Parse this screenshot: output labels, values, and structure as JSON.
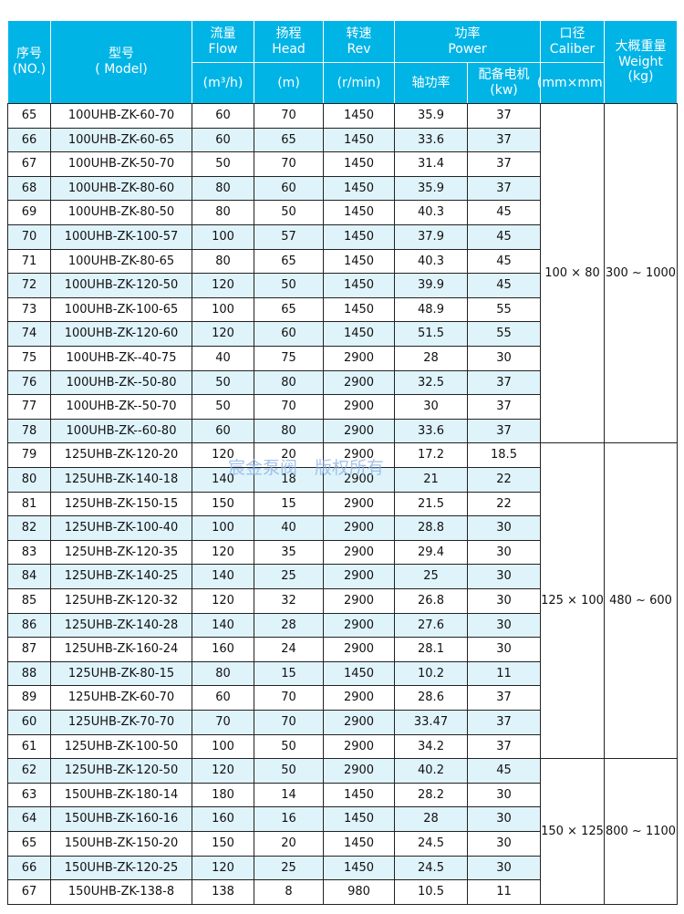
{
  "header": {
    "no": {
      "zh": "序号",
      "en": "(NO.)"
    },
    "model": {
      "zh": "型号",
      "en": "( Model)"
    },
    "flow": {
      "zh": "流量",
      "en": "Flow",
      "unit": "(m³/h)"
    },
    "head": {
      "zh": "扬程",
      "en": "Head",
      "unit": "(m)"
    },
    "rev": {
      "zh": "转速",
      "en": "Rev",
      "unit": "(r/min)"
    },
    "power": {
      "zh": "功率",
      "en": "Power",
      "shaft": "轴功率",
      "motor": {
        "zh": "配备电机",
        "unit": "(kw)"
      }
    },
    "caliber": {
      "zh": "口径",
      "en": "Caliber",
      "unit": "(mm×mm)"
    },
    "weight": {
      "zh": "大概重量",
      "en": "Weight",
      "unit": "(kg)"
    }
  },
  "groups": [
    {
      "caliber": "100 × 80",
      "weight": "300 ~ 1000",
      "rows": [
        [
          65,
          "100UHB-ZK-60-70",
          60,
          70,
          1450,
          35.9,
          37
        ],
        [
          66,
          "100UHB-ZK-60-65",
          60,
          65,
          1450,
          33.6,
          37
        ],
        [
          67,
          "100UHB-ZK-50-70",
          50,
          70,
          1450,
          31.4,
          37
        ],
        [
          68,
          "100UHB-ZK-80-60",
          80,
          60,
          1450,
          35.9,
          37
        ],
        [
          69,
          "100UHB-ZK-80-50",
          80,
          50,
          1450,
          40.3,
          45
        ],
        [
          70,
          "100UHB-ZK-100-57",
          100,
          57,
          1450,
          37.9,
          45
        ],
        [
          71,
          "100UHB-ZK-80-65",
          80,
          65,
          1450,
          40.3,
          45
        ],
        [
          72,
          "100UHB-ZK-120-50",
          120,
          50,
          1450,
          39.9,
          45
        ],
        [
          73,
          "100UHB-ZK-100-65",
          100,
          65,
          1450,
          48.9,
          55
        ],
        [
          74,
          "100UHB-ZK-120-60",
          120,
          60,
          1450,
          51.5,
          55
        ],
        [
          75,
          "100UHB-ZK--40-75",
          40,
          75,
          2900,
          28,
          30
        ],
        [
          76,
          "100UHB-ZK--50-80",
          50,
          80,
          2900,
          32.5,
          37
        ],
        [
          77,
          "100UHB-ZK--50-70",
          50,
          70,
          2900,
          30,
          37
        ],
        [
          78,
          "100UHB-ZK--60-80",
          60,
          80,
          2900,
          33.6,
          37
        ]
      ]
    },
    {
      "caliber": "125 × 100",
      "weight": "480 ~ 600",
      "rows": [
        [
          79,
          "125UHB-ZK-120-20",
          120,
          20,
          2900,
          17.2,
          18.5
        ],
        [
          80,
          "125UHB-ZK-140-18",
          140,
          18,
          2900,
          21,
          22
        ],
        [
          81,
          "125UHB-ZK-150-15",
          150,
          15,
          2900,
          21.5,
          22
        ],
        [
          82,
          "125UHB-ZK-100-40",
          100,
          40,
          2900,
          28.8,
          30
        ],
        [
          83,
          "125UHB-ZK-120-35",
          120,
          35,
          2900,
          29.4,
          30
        ],
        [
          84,
          "125UHB-ZK-140-25",
          140,
          25,
          2900,
          25,
          30
        ],
        [
          85,
          "125UHB-ZK-120-32",
          120,
          32,
          2900,
          26.8,
          30
        ],
        [
          86,
          "125UHB-ZK-140-28",
          140,
          28,
          2900,
          27.6,
          30
        ],
        [
          87,
          "125UHB-ZK-160-24",
          160,
          24,
          2900,
          28.1,
          30
        ],
        [
          88,
          "125UHB-ZK-80-15",
          80,
          15,
          1450,
          10.2,
          11
        ],
        [
          89,
          "125UHB-ZK-60-70",
          60,
          70,
          2900,
          28.6,
          37
        ],
        [
          60,
          "125UHB-ZK-70-70",
          70,
          70,
          2900,
          33.47,
          37
        ],
        [
          61,
          "125UHB-ZK-100-50",
          100,
          50,
          2900,
          34.2,
          37
        ]
      ]
    },
    {
      "caliber": "150 × 125",
      "weight": "800 ~ 1100",
      "rows": [
        [
          62,
          "125UHB-ZK-120-50",
          120,
          50,
          2900,
          40.2,
          45
        ],
        [
          63,
          "150UHB-ZK-180-14",
          180,
          14,
          1450,
          28.2,
          30
        ],
        [
          64,
          "150UHB-ZK-160-16",
          160,
          16,
          1450,
          28,
          30
        ],
        [
          65,
          "150UHB-ZK-150-20",
          150,
          20,
          1450,
          24.5,
          30
        ],
        [
          66,
          "150UHB-ZK-120-25",
          120,
          25,
          1450,
          24.5,
          30
        ],
        [
          67,
          "150UHB-ZK-138-8",
          138,
          8,
          980,
          10.5,
          11
        ]
      ]
    }
  ],
  "watermark": "宸金泵阀　版权所有"
}
